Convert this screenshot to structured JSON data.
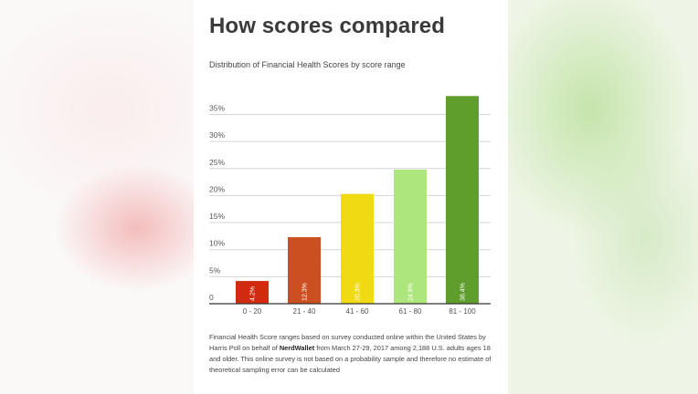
{
  "chart_data": {
    "type": "bar",
    "title": "How scores compared",
    "subtitle": "Distribution of Financial Health Scores by score range",
    "categories": [
      "0 - 20",
      "21 - 40",
      "41 - 60",
      "61 - 80",
      "81 - 100"
    ],
    "values": [
      4.2,
      12.3,
      20.3,
      24.8,
      38.4
    ],
    "value_labels": [
      "4.2%",
      "12.3%",
      "20.3%",
      "24.8%",
      "38.4%"
    ],
    "colors": [
      "#d12a0f",
      "#cc4f22",
      "#f0da12",
      "#aee67e",
      "#5f9e2d"
    ],
    "ylim": [
      0,
      40
    ],
    "yticks": [
      0,
      5,
      10,
      15,
      20,
      25,
      30,
      35
    ],
    "ytick_labels": [
      "0",
      "5%",
      "10%",
      "15%",
      "20%",
      "25%",
      "30%",
      "35%"
    ],
    "grid": true,
    "legend": "none"
  },
  "footnote": {
    "part1": "Financial Health Score ranges based on survey conducted online within the United States by Harris Poll on behalf of ",
    "brand": "NerdWallet",
    "part2": " from March 27-29, 2017 among 2,188 U.S. adults ages 18 and older. This online survey is not based on a probability sample and therefore no estimate of theoretical sampling error can be calculated"
  }
}
